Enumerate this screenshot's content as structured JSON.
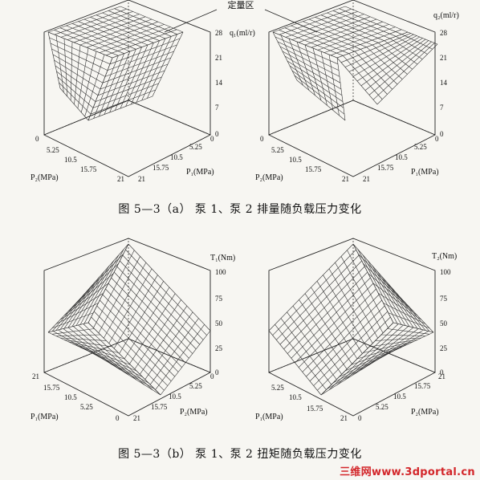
{
  "figure_a": {
    "annotation": "定量区",
    "caption": "图 5—3（a）  泵 1、泵 2 排量随负载压力变化",
    "plots": [
      {
        "id": "q1",
        "z_label": "q₁(ml/r)",
        "z_ticks": [
          "28",
          "21",
          "14",
          "7",
          "0"
        ],
        "left_axis_label": "P₂(MPa)",
        "left_ticks": [
          "0",
          "5.25",
          "10.5",
          "15.75",
          "21"
        ],
        "right_axis_label": "P₁(MPa)",
        "right_ticks": [
          "21",
          "15.75",
          "10.5",
          "5.25",
          "0"
        ]
      },
      {
        "id": "q2",
        "z_label": "q₂(ml/r)",
        "z_ticks": [
          "28",
          "21",
          "14",
          "7",
          "0"
        ],
        "left_axis_label": "P₂(MPa)",
        "left_ticks": [
          "0",
          "5.25",
          "10.5",
          "15.75",
          "21"
        ],
        "right_axis_label": "P₁(MPa)",
        "right_ticks": [
          "21",
          "15.75",
          "10.5",
          "5.25",
          "0"
        ]
      }
    ]
  },
  "figure_b": {
    "caption": "图 5—3（b）  泵 1、泵 2 扭矩随负载压力变化",
    "plots": [
      {
        "id": "t1",
        "z_label": "T₁(Nm)",
        "z_ticks": [
          "100",
          "75",
          "50",
          "25",
          "0"
        ],
        "left_axis_label": "P₁(MPa)",
        "left_ticks": [
          "21",
          "15.75",
          "10.5",
          "5.25",
          "0"
        ],
        "right_axis_label": "P₂(MPa)",
        "right_ticks": [
          "21",
          "15.75",
          "10.5",
          "5.25",
          "0"
        ]
      },
      {
        "id": "t2",
        "z_label": "T₂(Nm)",
        "z_ticks": [
          "100",
          "75",
          "50",
          "25",
          "0"
        ],
        "left_axis_label": "P₁(MPa)",
        "left_ticks": [
          "5.25",
          "10.5",
          "15.75",
          "21"
        ],
        "right_axis_label": "P₂(MPa)",
        "right_ticks": [
          "21",
          "15.75",
          "10.5",
          "5.25",
          "0"
        ]
      }
    ]
  },
  "watermark": "三维网www.3dportal.cn"
}
